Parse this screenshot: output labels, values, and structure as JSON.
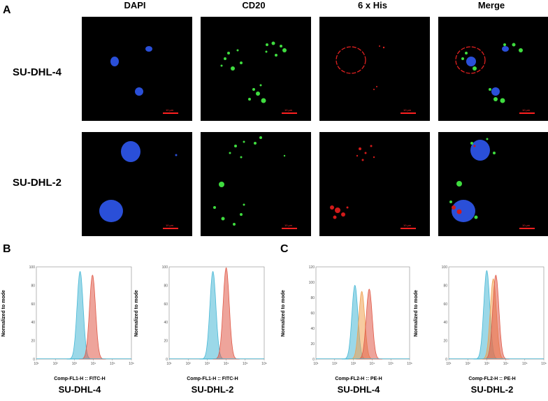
{
  "panel_labels": {
    "a": "A",
    "b": "B",
    "c": "C"
  },
  "microscopy": {
    "columns": [
      "DAPI",
      "CD20",
      "6 x His",
      "Merge"
    ],
    "rows": [
      "SU-DHL-4",
      "SU-DHL-2"
    ],
    "scale_bar_label": "10 µm"
  },
  "chart_data": [
    {
      "type": "area",
      "panel": "B",
      "title": "SU-DHL-4",
      "xlabel": "Comp-FL1-H :: FITC-H",
      "ylabel": "Normalized to mode",
      "x_scale": "log",
      "xlim": [
        10,
        1000000
      ],
      "ylim": [
        0,
        100
      ],
      "y_ticks": [
        0,
        20,
        40,
        60,
        80,
        100
      ],
      "series": [
        {
          "color": "#49b8d6",
          "peak_x": 2000,
          "peak_y": 95
        },
        {
          "color": "#e05a48",
          "peak_x": 9000,
          "peak_y": 91
        }
      ]
    },
    {
      "type": "area",
      "panel": "B",
      "title": "SU-DHL-2",
      "xlabel": "Comp-FL1-H :: FITC-H",
      "ylabel": "Normalized to mode",
      "x_scale": "log",
      "xlim": [
        10,
        1000000
      ],
      "ylim": [
        0,
        100
      ],
      "y_ticks": [
        0,
        20,
        40,
        60,
        80,
        100
      ],
      "series": [
        {
          "color": "#49b8d6",
          "peak_x": 2000,
          "peak_y": 95
        },
        {
          "color": "#e05a48",
          "peak_x": 10000,
          "peak_y": 99
        }
      ]
    },
    {
      "type": "area",
      "panel": "C",
      "title": "SU-DHL-4",
      "xlabel": "Comp-FL2-H :: PE-H",
      "ylabel": "Normalized to mode",
      "x_scale": "log",
      "xlim": [
        10,
        1000000
      ],
      "ylim": [
        0,
        120
      ],
      "y_ticks": [
        0,
        20,
        40,
        60,
        80,
        100,
        120
      ],
      "series": [
        {
          "color": "#49b8d6",
          "peak_x": 1200,
          "peak_y": 96
        },
        {
          "color": "#f0a050",
          "peak_x": 2800,
          "peak_y": 88
        },
        {
          "color": "#e05a48",
          "peak_x": 7000,
          "peak_y": 91
        }
      ]
    },
    {
      "type": "area",
      "panel": "C",
      "title": "SU-DHL-2",
      "xlabel": "Comp-FL2-H :: PE-H",
      "ylabel": "Normalized to mode",
      "x_scale": "log",
      "xlim": [
        10,
        1000000
      ],
      "ylim": [
        0,
        100
      ],
      "y_ticks": [
        0,
        20,
        40,
        60,
        80,
        100
      ],
      "series": [
        {
          "color": "#49b8d6",
          "peak_x": 1000,
          "peak_y": 96
        },
        {
          "color": "#f0a050",
          "peak_x": 2200,
          "peak_y": 87
        },
        {
          "color": "#e05a48",
          "peak_x": 3000,
          "peak_y": 91
        }
      ]
    }
  ]
}
